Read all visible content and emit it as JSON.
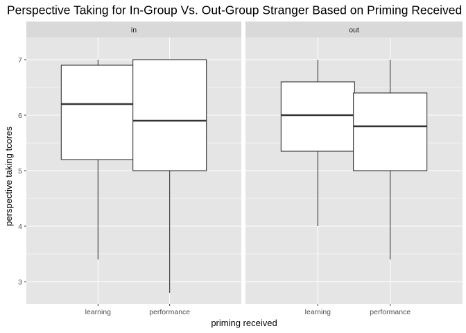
{
  "chart_data": {
    "type": "boxplot",
    "title": "Perspective Taking for In-Group Vs. Out-Group Stranger Based on Priming Received",
    "xlabel": "priming received",
    "ylabel": "perspective taking tcores",
    "ylim": [
      2.6,
      7.4
    ],
    "y_ticks": [
      3,
      4,
      5,
      6,
      7
    ],
    "categories": [
      "learning",
      "performance"
    ],
    "grid": true,
    "colors": {
      "panel_background": "#e5e5e5",
      "strip_background": "#d9d9d9",
      "grid_major": "#ffffff",
      "box_fill": "#ffffff",
      "box_line": "#333333"
    },
    "facets": [
      {
        "label": "in",
        "boxes": [
          {
            "category": "learning",
            "min": 3.4,
            "q1": 5.2,
            "median": 6.2,
            "q3": 6.9,
            "max": 7.0
          },
          {
            "category": "performance",
            "min": 2.8,
            "q1": 5.0,
            "median": 5.9,
            "q3": 7.0,
            "max": 7.0
          }
        ]
      },
      {
        "label": "out",
        "boxes": [
          {
            "category": "learning",
            "min": 4.0,
            "q1": 5.35,
            "median": 6.0,
            "q3": 6.6,
            "max": 7.0
          },
          {
            "category": "performance",
            "min": 3.4,
            "q1": 5.0,
            "median": 5.8,
            "q3": 6.4,
            "max": 7.0
          }
        ]
      }
    ]
  }
}
